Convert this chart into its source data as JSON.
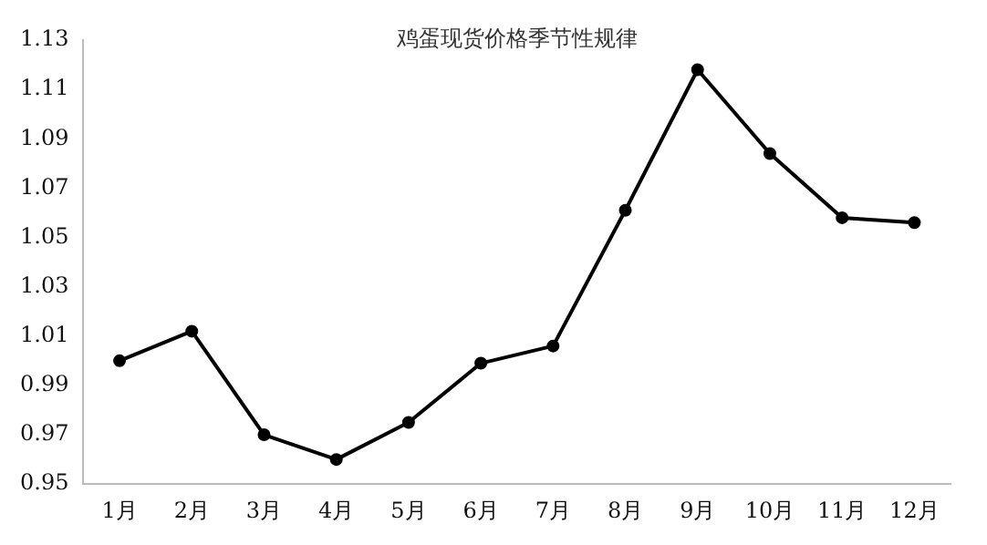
{
  "chart_data": {
    "type": "line",
    "title": "鸡蛋现货价格季节性规律",
    "categories": [
      "1月",
      "2月",
      "3月",
      "4月",
      "5月",
      "6月",
      "7月",
      "8月",
      "9月",
      "10月",
      "11月",
      "12月"
    ],
    "series": [
      {
        "color": "#000000",
        "values": [
          1.0,
          1.012,
          0.97,
          0.96,
          0.975,
          0.999,
          1.006,
          1.061,
          1.118,
          1.084,
          1.058,
          1.056
        ]
      }
    ],
    "ylim": [
      0.95,
      1.13
    ],
    "yticks": [
      0.95,
      0.97,
      0.99,
      1.01,
      1.03,
      1.05,
      1.07,
      1.09,
      1.11,
      1.13
    ],
    "grid": false,
    "legend": false,
    "marker": "circle",
    "line_style": "solid"
  }
}
